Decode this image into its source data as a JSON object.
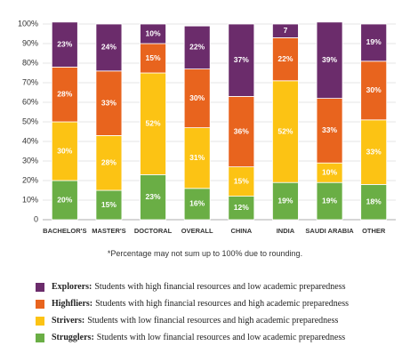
{
  "chart_data": {
    "type": "stacked_bar",
    "categories": [
      "BACHELOR'S",
      "MASTER'S",
      "DOCTORAL",
      "OVERALL",
      "CHINA",
      "INDIA",
      "SAUDI ARABIA",
      "OTHER"
    ],
    "series": [
      {
        "name": "Strugglers:",
        "description": "Students with low financial resources and low academic preparedness",
        "color": "#6aae45",
        "values": [
          20,
          15,
          23,
          16,
          12,
          19,
          19,
          18
        ],
        "value_labels": [
          "20%",
          "15%",
          "23%",
          "16%",
          "12%",
          "19%",
          "19%",
          "18%"
        ]
      },
      {
        "name": "Strivers:",
        "description": "Students with low financial resources and high academic preparedness",
        "color": "#fcc314",
        "values": [
          30,
          28,
          52,
          31,
          15,
          52,
          10,
          33
        ],
        "value_labels": [
          "30%",
          "28%",
          "52%",
          "31%",
          "15%",
          "52%",
          "10%",
          "33%"
        ]
      },
      {
        "name": "Highfliers:",
        "description": "Students with high financial resources and high academic preparedness",
        "color": "#e8641e",
        "values": [
          28,
          33,
          15,
          30,
          36,
          22,
          33,
          30
        ],
        "value_labels": [
          "28%",
          "33%",
          "15%",
          "30%",
          "36%",
          "22%",
          "33%",
          "30%"
        ]
      },
      {
        "name": "Explorers:",
        "description": "Students with high financial resources and low academic preparedness",
        "color": "#6b2c6b",
        "values": [
          23,
          24,
          10,
          22,
          37,
          7,
          39,
          19
        ],
        "value_labels": [
          "23%",
          "24%",
          "10%",
          "22%",
          "37%",
          "7",
          "39%",
          "19%"
        ]
      }
    ],
    "ylim": [
      0,
      100
    ],
    "yticks": [
      0,
      {
        "value": 10,
        "label": "10%"
      },
      {
        "value": 20,
        "label": "20%"
      },
      {
        "value": 30,
        "label": "30%"
      },
      {
        "value": 40,
        "label": "40%"
      },
      {
        "value": 50,
        "label": "50%"
      },
      {
        "value": 60,
        "label": "60%"
      },
      {
        "value": 70,
        "label": "70%"
      },
      {
        "value": 80,
        "label": "80%"
      },
      {
        "value": 90,
        "label": "90%"
      },
      {
        "value": 100,
        "label": "100%"
      }
    ],
    "grid": true,
    "footnote": "*Percentage may not sum up to 100% due to rounding."
  }
}
